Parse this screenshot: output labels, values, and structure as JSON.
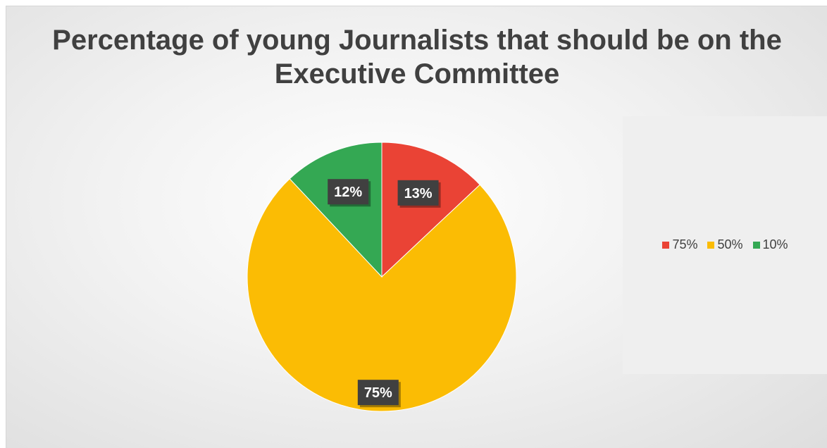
{
  "chart_data": {
    "type": "pie",
    "title": "Percentage of young Journalists that should be on the Executive Committee",
    "categories": [
      "75%",
      "50%",
      "10%"
    ],
    "values": [
      13,
      75,
      12
    ],
    "data_labels": [
      "13%",
      "75%",
      "12%"
    ],
    "colors": [
      "#ea4335",
      "#fbbc04",
      "#34a853"
    ],
    "legend_position": "right"
  }
}
